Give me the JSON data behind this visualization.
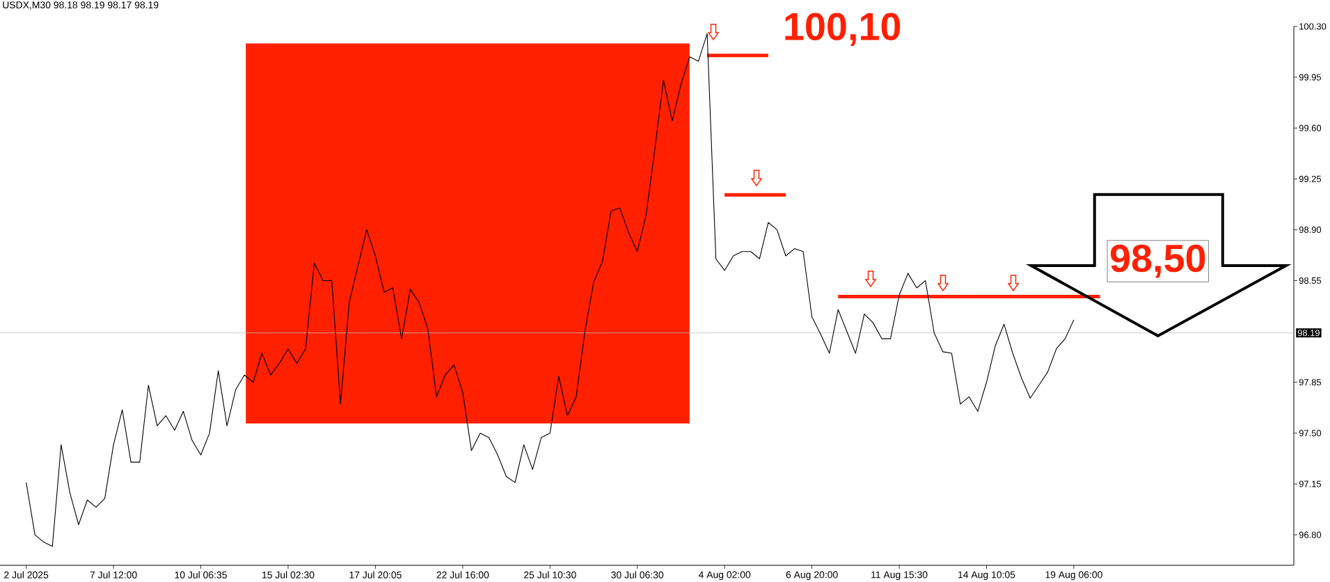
{
  "chart_data": {
    "type": "line",
    "title": "USDX,M30  98.18 98.19 98.17 98.19",
    "categories": [
      "2 Jul 2025",
      null,
      null,
      null,
      null,
      null,
      null,
      null,
      null,
      null,
      "7 Jul 12:00",
      null,
      null,
      null,
      null,
      null,
      null,
      null,
      null,
      null,
      "10 Jul 06:35",
      null,
      null,
      null,
      null,
      null,
      null,
      null,
      null,
      null,
      "15 Jul 02:30",
      null,
      null,
      null,
      null,
      null,
      null,
      null,
      null,
      null,
      "17 Jul 20:05",
      null,
      null,
      null,
      null,
      null,
      null,
      null,
      null,
      null,
      "22 Jul 16:00",
      null,
      null,
      null,
      null,
      null,
      null,
      null,
      null,
      null,
      "25 Jul 10:30",
      null,
      null,
      null,
      null,
      null,
      null,
      null,
      null,
      null,
      "30 Jul 06:30",
      null,
      null,
      null,
      null,
      null,
      null,
      null,
      null,
      null,
      "4 Aug 02:00",
      null,
      null,
      null,
      null,
      null,
      null,
      null,
      null,
      null,
      "6 Aug 20:00",
      null,
      null,
      null,
      null,
      null,
      null,
      null,
      null,
      null,
      "11 Aug 15:30",
      null,
      null,
      null,
      null,
      null,
      null,
      null,
      null,
      null,
      "14 Aug 10:05",
      null,
      null,
      null,
      null,
      null,
      null,
      null,
      null,
      null,
      "19 Aug 06:00",
      null,
      null,
      null
    ],
    "ylim": [
      96.59,
      100.3
    ],
    "yticks": [
      {
        "value": 96.8,
        "label": "96.80"
      },
      {
        "value": 97.15,
        "label": "97.15"
      },
      {
        "value": 97.5,
        "label": "97.50"
      },
      {
        "value": 97.85,
        "label": "97.85"
      },
      {
        "value": 98.55,
        "label": "98.55"
      },
      {
        "value": 98.9,
        "label": "98.90"
      },
      {
        "value": 99.25,
        "label": "99.25"
      },
      {
        "value": 99.6,
        "label": "99.60"
      },
      {
        "value": 99.95,
        "label": "99.95"
      },
      {
        "value": 100.3,
        "label": "100.30"
      }
    ],
    "marker": "none",
    "line_style": "solid",
    "series": [
      {
        "color": "#ff2000",
        "values": [
          null,
          null,
          null,
          null,
          null,
          null,
          null,
          null,
          null,
          null,
          null,
          null,
          null,
          null,
          null,
          null,
          null,
          null,
          null,
          null,
          null,
          null,
          null,
          null,
          null,
          null,
          null,
          null,
          null,
          null,
          null,
          null,
          null,
          null,
          null,
          null,
          null,
          null,
          null,
          null,
          null,
          null,
          null,
          null,
          null,
          null,
          null,
          null,
          null,
          null,
          null,
          null,
          null,
          null,
          null,
          null,
          null,
          null,
          null,
          null,
          null,
          null,
          null,
          null,
          null,
          null,
          null,
          null,
          null,
          null,
          null,
          null,
          null,
          null,
          null,
          null,
          null,
          null,
          100.1,
          100.1,
          100.1,
          100.1,
          100.1,
          100.1,
          100.1,
          100.1,
          null,
          null,
          null,
          null,
          null,
          null,
          null,
          null,
          null,
          null,
          null,
          null,
          null,
          null,
          null,
          null,
          null,
          null,
          null,
          null,
          null,
          null,
          null,
          null,
          null,
          null,
          null,
          null,
          null,
          null,
          null,
          null,
          null,
          null,
          null,
          null,
          null,
          null
        ]
      },
      {
        "color": "#ff2000",
        "values": [
          null,
          null,
          null,
          null,
          null,
          null,
          null,
          null,
          null,
          null,
          null,
          null,
          null,
          null,
          null,
          null,
          null,
          null,
          null,
          null,
          null,
          null,
          null,
          null,
          null,
          null,
          null,
          null,
          null,
          null,
          null,
          null,
          null,
          null,
          null,
          null,
          null,
          null,
          null,
          null,
          null,
          null,
          null,
          null,
          null,
          null,
          null,
          null,
          null,
          null,
          null,
          null,
          null,
          null,
          null,
          null,
          null,
          null,
          null,
          null,
          null,
          null,
          null,
          null,
          null,
          null,
          null,
          null,
          null,
          null,
          null,
          null,
          null,
          null,
          null,
          null,
          null,
          null,
          null,
          null,
          99.14,
          99.14,
          99.14,
          99.14,
          99.14,
          99.14,
          99.14,
          99.14,
          null,
          null,
          null,
          null,
          null,
          null,
          null,
          null,
          null,
          null,
          null,
          null,
          null,
          null,
          null,
          null,
          null,
          null,
          null,
          null,
          null,
          null,
          null,
          null,
          null,
          null,
          null,
          null,
          null,
          null,
          null,
          null,
          null,
          null,
          null,
          null
        ]
      },
      {
        "color": "#ff2000",
        "values": [
          null,
          null,
          null,
          null,
          null,
          null,
          null,
          null,
          null,
          null,
          null,
          null,
          null,
          null,
          null,
          null,
          null,
          null,
          null,
          null,
          null,
          null,
          null,
          null,
          null,
          null,
          null,
          null,
          null,
          null,
          null,
          null,
          null,
          null,
          null,
          null,
          null,
          null,
          null,
          null,
          null,
          null,
          null,
          null,
          null,
          null,
          null,
          null,
          null,
          null,
          null,
          null,
          null,
          null,
          null,
          null,
          null,
          null,
          null,
          null,
          null,
          null,
          null,
          null,
          null,
          null,
          null,
          null,
          null,
          null,
          null,
          null,
          null,
          null,
          null,
          null,
          null,
          null,
          null,
          null,
          null,
          null,
          null,
          null,
          null,
          null,
          null,
          null,
          null,
          null,
          null,
          null,
          null,
          98.44,
          98.44,
          98.44,
          98.44,
          98.44,
          98.44,
          98.44,
          98.44,
          98.44,
          98.44,
          98.44,
          98.44,
          98.44,
          98.44,
          98.44,
          98.44,
          98.44,
          98.44,
          98.44,
          98.44,
          98.44,
          98.44,
          98.44,
          98.44,
          98.44,
          98.44,
          98.44,
          98.44,
          98.44,
          98.44,
          98.44
        ]
      },
      {
        "color": "#000000",
        "values": [
          97.16,
          96.8,
          96.75,
          96.72,
          97.42,
          97.09,
          96.87,
          97.04,
          96.99,
          97.05,
          97.42,
          97.66,
          97.3,
          97.3,
          97.83,
          97.55,
          97.62,
          97.52,
          97.65,
          97.45,
          97.35,
          97.5,
          97.93,
          97.55,
          97.8,
          97.9,
          97.85,
          98.05,
          97.9,
          97.98,
          98.08,
          97.98,
          98.08,
          98.67,
          98.55,
          98.55,
          97.7,
          98.4,
          98.65,
          98.9,
          98.72,
          98.47,
          98.5,
          98.15,
          98.49,
          98.4,
          98.22,
          97.75,
          97.9,
          97.97,
          97.78,
          97.38,
          97.5,
          97.47,
          97.35,
          97.2,
          97.16,
          97.42,
          97.25,
          97.47,
          97.5,
          97.89,
          97.62,
          97.75,
          98.2,
          98.54,
          98.68,
          99.03,
          99.05,
          98.88,
          98.75,
          99.0,
          99.45,
          99.93,
          99.65,
          99.9,
          100.09,
          100.06,
          100.25,
          98.7,
          98.62,
          98.72,
          98.75,
          98.75,
          98.7,
          98.95,
          98.9,
          98.72,
          98.77,
          98.75,
          98.3,
          98.18,
          98.05,
          98.35,
          98.2,
          98.05,
          98.32,
          98.26,
          98.15,
          98.15,
          98.45,
          98.6,
          98.5,
          98.55,
          98.19,
          98.06,
          98.05,
          97.7,
          97.75,
          97.65,
          97.85,
          98.1,
          98.25,
          98.05,
          97.88,
          97.74,
          97.83,
          97.92,
          98.08,
          98.15,
          98.28,
          null,
          null,
          null
        ]
      }
    ],
    "ref_lines": [
      {
        "axis": "y",
        "value": 98.19,
        "label": "98.19",
        "color": "#c0c0c0"
      }
    ],
    "annotations": [
      "100,10",
      "98,50"
    ]
  }
}
